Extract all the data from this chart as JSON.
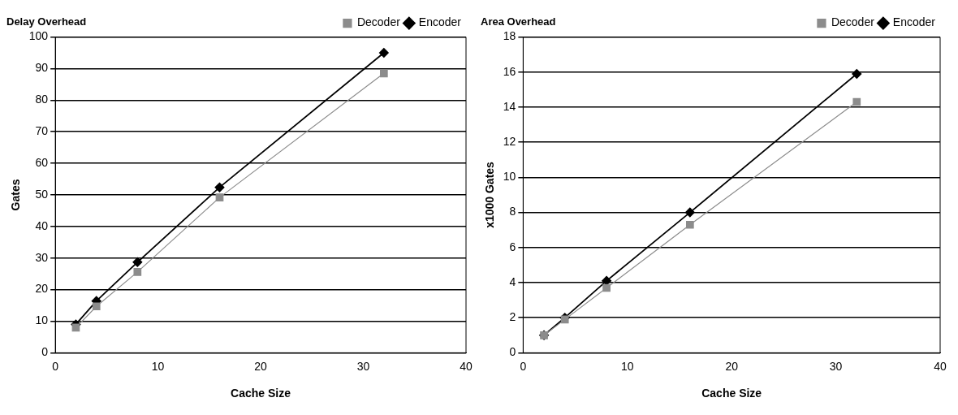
{
  "chart_data": [
    {
      "type": "line",
      "title": "Delay Overhead",
      "xlabel": "Cache Size",
      "ylabel": "Gates",
      "x": [
        2,
        4,
        8,
        16,
        32
      ],
      "xlim": [
        0,
        40
      ],
      "xticks": [
        0,
        10,
        20,
        30,
        40
      ],
      "ylim": [
        0,
        100
      ],
      "yticks": [
        0,
        10,
        20,
        30,
        40,
        50,
        60,
        70,
        80,
        90,
        100
      ],
      "grid": "y",
      "legend": "top right",
      "series": [
        {
          "name": "Encoder",
          "color": "#000000",
          "marker": "diamond",
          "values": [
            9,
            16.4,
            28.7,
            52.4,
            95
          ]
        },
        {
          "name": "Decoder",
          "color": "#8c8c8c",
          "marker": "square",
          "values": [
            8,
            14.7,
            25.6,
            49.2,
            88.5
          ]
        }
      ]
    },
    {
      "type": "line",
      "title": "Area Overhead",
      "xlabel": "Cache Size",
      "ylabel": "x1000 Gates",
      "x": [
        2,
        4,
        8,
        16,
        32
      ],
      "xlim": [
        0,
        40
      ],
      "xticks": [
        0,
        10,
        20,
        30,
        40
      ],
      "ylim": [
        0,
        18
      ],
      "yticks": [
        0,
        2,
        4,
        6,
        8,
        10,
        12,
        14,
        16,
        18
      ],
      "grid": "y",
      "legend": "top right",
      "series": [
        {
          "name": "Encoder",
          "color": "#000000",
          "marker": "diamond",
          "values": [
            1,
            2,
            4.1,
            8,
            15.9
          ]
        },
        {
          "name": "Decoder",
          "color": "#8c8c8c",
          "marker": "square",
          "values": [
            1,
            1.9,
            3.7,
            7.3,
            14.3
          ]
        }
      ]
    }
  ]
}
